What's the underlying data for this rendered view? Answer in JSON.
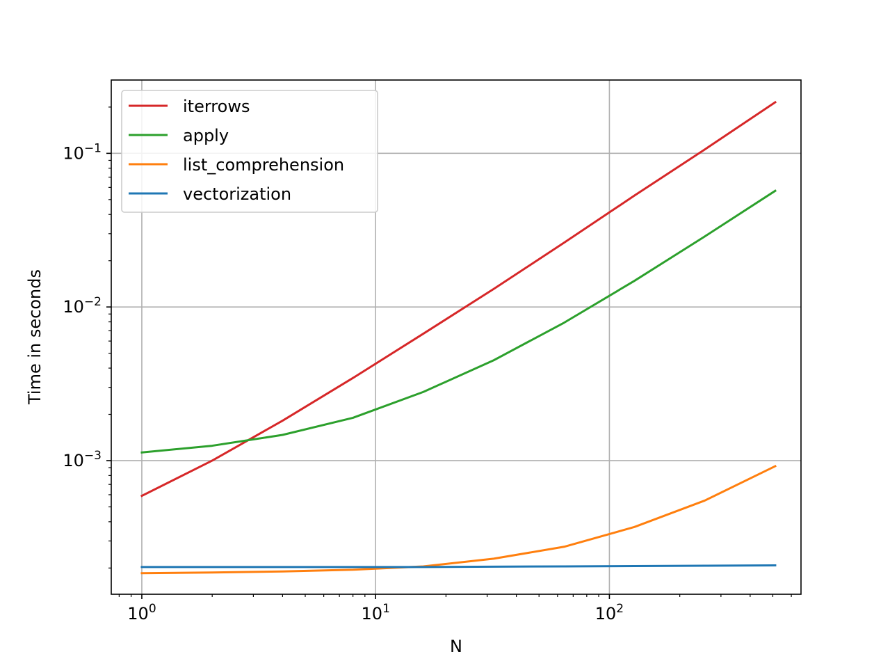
{
  "chart_data": {
    "type": "line",
    "title": "",
    "xlabel": "N",
    "ylabel": "Time in seconds",
    "xscale": "log",
    "yscale": "log",
    "xlim": [
      0.74,
      660
    ],
    "ylim": [
      0.000135,
      0.3
    ],
    "xticks": [
      {
        "value": 1,
        "base": "10",
        "exp": "0"
      },
      {
        "value": 10,
        "base": "10",
        "exp": "1"
      },
      {
        "value": 100,
        "base": "10",
        "exp": "2"
      }
    ],
    "yticks": [
      {
        "value": 0.001,
        "base": "10",
        "exp": "−3"
      },
      {
        "value": 0.01,
        "base": "10",
        "exp": "−2"
      },
      {
        "value": 0.1,
        "base": "10",
        "exp": "−1"
      }
    ],
    "grid": true,
    "legend_position": "top-left",
    "x": [
      1,
      2,
      4,
      8,
      16,
      32,
      64,
      128,
      256,
      512
    ],
    "series": [
      {
        "name": "iterrows",
        "color": "#d62728",
        "values": [
          0.00059,
          0.001,
          0.00182,
          0.00345,
          0.0067,
          0.0131,
          0.0262,
          0.0531,
          0.106,
          0.215
        ]
      },
      {
        "name": "apply",
        "color": "#2ca02c",
        "values": [
          0.00113,
          0.00125,
          0.00147,
          0.0019,
          0.0028,
          0.0045,
          0.0079,
          0.0148,
          0.0288,
          0.057
        ]
      },
      {
        "name": "list_comprehension",
        "color": "#ff7f0e",
        "values": [
          0.000185,
          0.000187,
          0.00019,
          0.000195,
          0.000205,
          0.00023,
          0.000275,
          0.00037,
          0.00055,
          0.00092
        ]
      },
      {
        "name": "vectorization",
        "color": "#1f77b4",
        "values": [
          0.000203,
          0.000203,
          0.000203,
          0.000203,
          0.000203,
          0.000204,
          0.000205,
          0.000206,
          0.000207,
          0.000208
        ]
      }
    ]
  }
}
